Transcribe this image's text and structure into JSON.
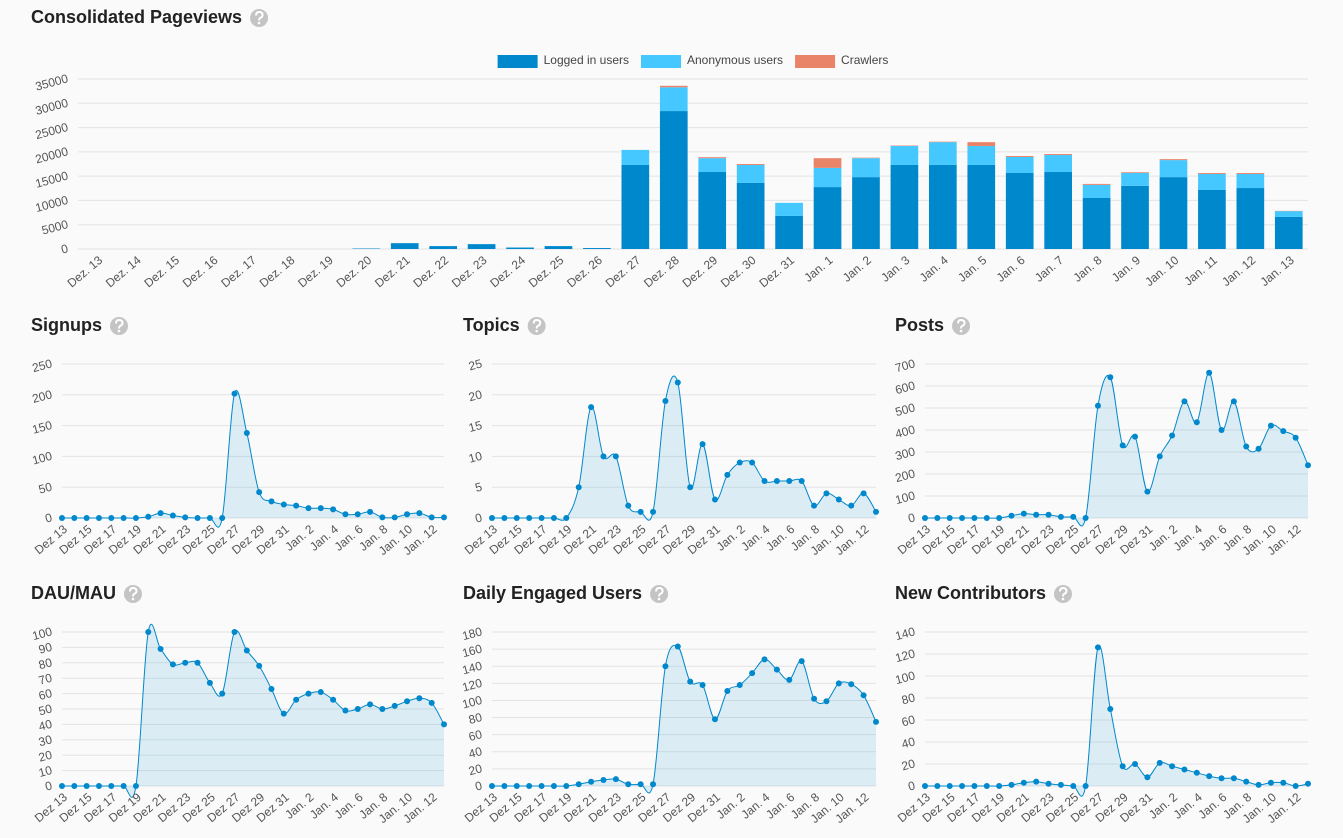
{
  "chart_data": [
    {
      "type": "bar",
      "stacked": true,
      "title": "Consolidated Pageviews",
      "legend": "top",
      "categories": [
        "Dez. 13",
        "Dez. 14",
        "Dez. 15",
        "Dez. 16",
        "Dez. 17",
        "Dez. 18",
        "Dez. 19",
        "Dez. 20",
        "Dez. 21",
        "Dez. 22",
        "Dez. 23",
        "Dez. 24",
        "Dez. 25",
        "Dez. 26",
        "Dez. 27",
        "Dez. 28",
        "Dez. 29",
        "Dez. 30",
        "Dez. 31",
        "Jan. 1",
        "Jan. 2",
        "Jan. 3",
        "Jan. 4",
        "Jan. 5",
        "Jan. 6",
        "Jan. 7",
        "Jan. 8",
        "Jan. 9",
        "Jan. 10",
        "Jan. 11",
        "Jan. 12",
        "Jan. 13"
      ],
      "series": [
        {
          "name": "Logged in users",
          "color": "#0088cc",
          "values": [
            0,
            0,
            0,
            0,
            0,
            0,
            0,
            100,
            1200,
            600,
            1000,
            300,
            600,
            200,
            17300,
            28400,
            15850,
            13600,
            6800,
            12750,
            14800,
            17300,
            17300,
            17300,
            15650,
            15850,
            10500,
            13000,
            14800,
            12150,
            12550,
            6600
          ]
        },
        {
          "name": "Anonymous users",
          "color": "#45c8ff",
          "values": [
            0,
            0,
            0,
            0,
            0,
            0,
            0,
            0,
            0,
            0,
            0,
            0,
            0,
            0,
            3100,
            4900,
            2850,
            3700,
            2700,
            3950,
            3900,
            3900,
            4700,
            3900,
            3300,
            3500,
            2700,
            2650,
            3500,
            3300,
            2900,
            1200
          ]
        },
        {
          "name": "Crawlers",
          "color": "#ea8469",
          "values": [
            0,
            0,
            0,
            0,
            0,
            0,
            0,
            0,
            0,
            0,
            0,
            0,
            0,
            0,
            0,
            300,
            200,
            200,
            0,
            2000,
            100,
            100,
            100,
            800,
            200,
            200,
            200,
            150,
            200,
            200,
            200,
            50
          ]
        }
      ],
      "ylim": [
        0,
        35000
      ],
      "yticks": [
        0,
        5000,
        10000,
        15000,
        20000,
        25000,
        30000,
        35000
      ],
      "grid": true
    },
    {
      "type": "line",
      "title": "Signups",
      "color": "#0088cc",
      "categories": [
        "Dez 13",
        null,
        "Dez 15",
        null,
        "Dez 17",
        null,
        "Dez 19",
        null,
        "Dez 21",
        null,
        "Dez 23",
        null,
        "Dez 25",
        null,
        "Dez 27",
        null,
        "Dez 29",
        null,
        "Dez 31",
        null,
        "Jan. 2",
        null,
        "Jan. 4",
        null,
        "Jan. 6",
        null,
        "Jan. 8",
        null,
        "Jan. 10",
        null,
        "Jan. 12",
        null
      ],
      "values": [
        0,
        0,
        0,
        0,
        0,
        0,
        0,
        2,
        8,
        4,
        1,
        0,
        0,
        0,
        202,
        138,
        42,
        27,
        22,
        20,
        16,
        16,
        14,
        6,
        6,
        10,
        1,
        1,
        6,
        8,
        1,
        1
      ],
      "ylim": [
        0,
        250
      ],
      "yticks": [
        0,
        50,
        100,
        150,
        200,
        250
      ],
      "grid": true
    },
    {
      "type": "line",
      "title": "Topics",
      "color": "#0088cc",
      "categories": [
        "Dez 13",
        null,
        "Dez 15",
        null,
        "Dez 17",
        null,
        "Dez 19",
        null,
        "Dez 21",
        null,
        "Dez 23",
        null,
        "Dez 25",
        null,
        "Dez 27",
        null,
        "Dez 29",
        null,
        "Dez 31",
        null,
        "Jan. 2",
        null,
        "Jan. 4",
        null,
        "Jan. 6",
        null,
        "Jan. 8",
        null,
        "Jan. 10",
        null,
        "Jan. 12",
        null
      ],
      "values": [
        0,
        0,
        0,
        0,
        0,
        0,
        0,
        5,
        18,
        10,
        10,
        2,
        1,
        1,
        19,
        22,
        5,
        12,
        3,
        7,
        9,
        9,
        6,
        6,
        6,
        6,
        2,
        4,
        3,
        2,
        4,
        1
      ],
      "ylim": [
        0,
        25
      ],
      "yticks": [
        0,
        5,
        10,
        15,
        20,
        25
      ],
      "grid": true
    },
    {
      "type": "line",
      "title": "Posts",
      "color": "#0088cc",
      "categories": [
        "Dez 13",
        null,
        "Dez 15",
        null,
        "Dez 17",
        null,
        "Dez 19",
        null,
        "Dez 21",
        null,
        "Dez 23",
        null,
        "Dez 25",
        null,
        "Dez 27",
        null,
        "Dez 29",
        null,
        "Dez 31",
        null,
        "Jan. 2",
        null,
        "Jan. 4",
        null,
        "Jan. 6",
        null,
        "Jan. 8",
        null,
        "Jan. 10",
        null,
        "Jan. 12",
        null
      ],
      "values": [
        0,
        0,
        0,
        0,
        0,
        0,
        0,
        10,
        20,
        15,
        15,
        5,
        5,
        0,
        510,
        640,
        330,
        370,
        120,
        280,
        375,
        530,
        435,
        660,
        400,
        530,
        325,
        315,
        420,
        395,
        365,
        240
      ],
      "ylim": [
        0,
        700
      ],
      "yticks": [
        0,
        100,
        200,
        300,
        400,
        500,
        600,
        700
      ],
      "grid": true
    },
    {
      "type": "line",
      "title": "DAU/MAU",
      "color": "#0088cc",
      "categories": [
        "Dez 13",
        null,
        "Dez 15",
        null,
        "Dez 17",
        null,
        "Dez 19",
        null,
        "Dez 21",
        null,
        "Dez 23",
        null,
        "Dez 25",
        null,
        "Dez 27",
        null,
        "Dez 29",
        null,
        "Dez 31",
        null,
        "Jan. 2",
        null,
        "Jan. 4",
        null,
        "Jan. 6",
        null,
        "Jan. 8",
        null,
        "Jan. 10",
        null,
        "Jan. 12",
        null
      ],
      "values": [
        0,
        0,
        0,
        0,
        0,
        0,
        0,
        100,
        89,
        79,
        80,
        80,
        67,
        60,
        100,
        88,
        78,
        63,
        47,
        56,
        60,
        61,
        56,
        49,
        50,
        53,
        50,
        52,
        55,
        57,
        54,
        40
      ],
      "ylim": [
        0,
        100
      ],
      "yticks": [
        0,
        10,
        20,
        30,
        40,
        50,
        60,
        70,
        80,
        90,
        100
      ],
      "grid": true
    },
    {
      "type": "line",
      "title": "Daily Engaged Users",
      "color": "#0088cc",
      "categories": [
        "Dez 13",
        null,
        "Dez 15",
        null,
        "Dez 17",
        null,
        "Dez 19",
        null,
        "Dez 21",
        null,
        "Dez 23",
        null,
        "Dez 25",
        null,
        "Dez 27",
        null,
        "Dez 29",
        null,
        "Dez 31",
        null,
        "Jan. 2",
        null,
        "Jan. 4",
        null,
        "Jan. 6",
        null,
        "Jan. 8",
        null,
        "Jan. 10",
        null,
        "Jan. 12",
        null
      ],
      "values": [
        0,
        0,
        0,
        0,
        0,
        0,
        0,
        2,
        5,
        7,
        8,
        2,
        2,
        2,
        140,
        163,
        122,
        118,
        78,
        111,
        118,
        132,
        148,
        136,
        124,
        146,
        102,
        99,
        120,
        119,
        106,
        75
      ],
      "ylim": [
        0,
        180
      ],
      "yticks": [
        0,
        20,
        40,
        60,
        80,
        100,
        120,
        140,
        160,
        180
      ],
      "grid": true
    },
    {
      "type": "line",
      "title": "New Contributors",
      "color": "#0088cc",
      "categories": [
        "Dez 13",
        null,
        "Dez 15",
        null,
        "Dez 17",
        null,
        "Dez 19",
        null,
        "Dez 21",
        null,
        "Dez 23",
        null,
        "Dez 25",
        null,
        "Dez 27",
        null,
        "Dez 29",
        null,
        "Dez 31",
        null,
        "Jan. 2",
        null,
        "Jan. 4",
        null,
        "Jan. 6",
        null,
        "Jan. 8",
        null,
        "Jan. 10",
        null,
        "Jan. 12",
        null
      ],
      "values": [
        0,
        0,
        0,
        0,
        0,
        0,
        0,
        1,
        3,
        4,
        2,
        1,
        0,
        0,
        126,
        70,
        18,
        20,
        8,
        21,
        18,
        15,
        12,
        9,
        7,
        7,
        4,
        1,
        3,
        3,
        0,
        2
      ],
      "ylim": [
        0,
        140
      ],
      "yticks": [
        0,
        20,
        40,
        60,
        80,
        100,
        120,
        140
      ],
      "grid": true
    }
  ]
}
